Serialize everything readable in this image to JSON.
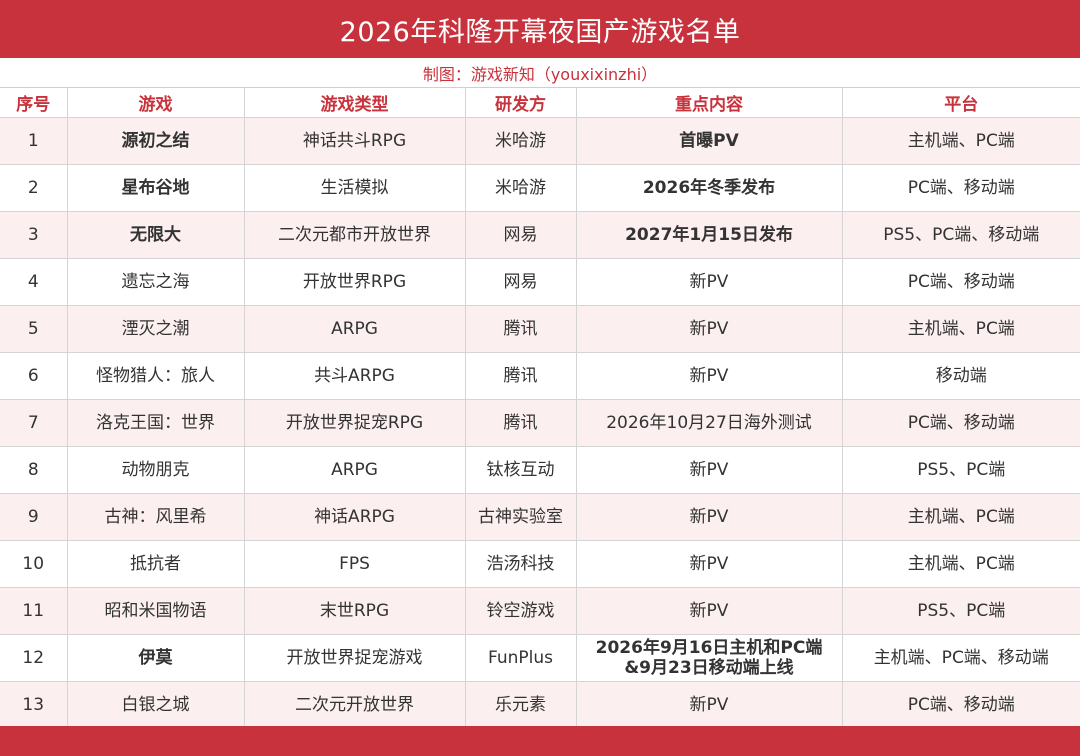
{
  "title": "2026年科隆开幕夜国产游戏名单",
  "subtitle": "制图：游戏新知（youxixinzhi）",
  "colors": {
    "accent": "#c8323c",
    "row_tint": "#fcefef"
  },
  "table": {
    "headers": [
      "序号",
      "游戏",
      "游戏类型",
      "研发方",
      "重点内容",
      "平台"
    ],
    "rows": [
      {
        "no": "1",
        "name": "源初之结",
        "genre": "神话共斗RPG",
        "dev": "米哈游",
        "content": "首曝PV",
        "platform": "主机端、PC端",
        "name_highlight": true,
        "content_bold": true
      },
      {
        "no": "2",
        "name": "星布谷地",
        "genre": "生活模拟",
        "dev": "米哈游",
        "content": "2026年冬季发布",
        "platform": "PC端、移动端",
        "name_highlight": true,
        "content_bold": true
      },
      {
        "no": "3",
        "name": "无限大",
        "genre": "二次元都市开放世界",
        "dev": "网易",
        "content": "2027年1月15日发布",
        "platform": "PS5、PC端、移动端",
        "name_highlight": true,
        "content_bold": true
      },
      {
        "no": "4",
        "name": "遗忘之海",
        "genre": "开放世界RPG",
        "dev": "网易",
        "content": "新PV",
        "platform": "PC端、移动端",
        "name_highlight": false,
        "content_bold": false
      },
      {
        "no": "5",
        "name": "湮灭之潮",
        "genre": "ARPG",
        "dev": "腾讯",
        "content": "新PV",
        "platform": "主机端、PC端",
        "name_highlight": false,
        "content_bold": false
      },
      {
        "no": "6",
        "name": "怪物猎人：旅人",
        "genre": "共斗ARPG",
        "dev": "腾讯",
        "content": "新PV",
        "platform": "移动端",
        "name_highlight": false,
        "content_bold": false
      },
      {
        "no": "7",
        "name": "洛克王国：世界",
        "genre": "开放世界捉宠RPG",
        "dev": "腾讯",
        "content": "2026年10月27日海外测试",
        "platform": "PC端、移动端",
        "name_highlight": false,
        "content_bold": false
      },
      {
        "no": "8",
        "name": "动物朋克",
        "genre": "ARPG",
        "dev": "钛核互动",
        "content": "新PV",
        "platform": "PS5、PC端",
        "name_highlight": false,
        "content_bold": false
      },
      {
        "no": "9",
        "name": "古神：风里希",
        "genre": "神话ARPG",
        "dev": "古神实验室",
        "content": "新PV",
        "platform": "主机端、PC端",
        "name_highlight": false,
        "content_bold": false
      },
      {
        "no": "10",
        "name": "抵抗者",
        "genre": "FPS",
        "dev": "浩汤科技",
        "content": "新PV",
        "platform": "主机端、PC端",
        "name_highlight": false,
        "content_bold": false
      },
      {
        "no": "11",
        "name": "昭和米国物语",
        "genre": "末世RPG",
        "dev": "铃空游戏",
        "content": "新PV",
        "platform": "PS5、PC端",
        "name_highlight": false,
        "content_bold": false
      },
      {
        "no": "12",
        "name": "伊莫",
        "genre": "开放世界捉宠游戏",
        "dev": "FunPlus",
        "content": "2026年9月16日主机和PC端&9月23日移动端上线",
        "content_lines": [
          "2026年9月16日主机和PC端",
          "&9月23日移动端上线"
        ],
        "platform": "主机端、PC端、移动端",
        "name_highlight": true,
        "content_bold": true
      },
      {
        "no": "13",
        "name": "白银之城",
        "genre": "二次元开放世界",
        "dev": "乐元素",
        "content": "新PV",
        "platform": "PC端、移动端",
        "name_highlight": false,
        "content_bold": false
      }
    ]
  }
}
